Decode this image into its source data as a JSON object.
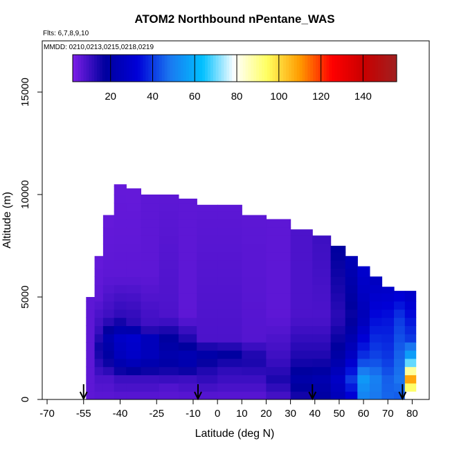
{
  "chart_data": {
    "type": "heatmap",
    "title": "ATOM2 Northbound nPentane_WAS",
    "flights_note": "Flts: 6,7,8,9,10",
    "dates_note": "MMDD: 0210,0213,0215,0218,0219",
    "xlabel": "Latitude (deg N)",
    "ylabel": "Altitude (m)",
    "xlim": [
      -72,
      87
    ],
    "ylim": [
      0,
      17500
    ],
    "x_ticks": [
      -70,
      -55,
      -40,
      -25,
      -10,
      0,
      10,
      20,
      30,
      40,
      50,
      60,
      70,
      80
    ],
    "y_ticks": [
      0,
      5000,
      10000,
      15000
    ],
    "colorbar": {
      "range": [
        2,
        156
      ],
      "ticks": [
        20,
        40,
        60,
        80,
        100,
        120,
        140
      ],
      "colors": [
        "#7d1fe8",
        "#00009e",
        "#0000d8",
        "#1a78f0",
        "#00c0ff",
        "#ffffff",
        "#ffff60",
        "#ff9c00",
        "#ff0000",
        "#c80000",
        "#a02020"
      ]
    },
    "arrows_at_latitude": [
      -55,
      -8,
      39,
      76
    ],
    "curtain": [
      {
        "lat": -52,
        "top": 5000,
        "values": [
          [
            0,
            6
          ],
          [
            1500,
            6
          ],
          [
            5000,
            6
          ]
        ]
      },
      {
        "lat": -49,
        "top": 7000,
        "values": [
          [
            0,
            6
          ],
          [
            1000,
            8
          ],
          [
            2500,
            16
          ],
          [
            3500,
            10
          ],
          [
            5000,
            6
          ],
          [
            7000,
            5
          ]
        ]
      },
      {
        "lat": -45,
        "top": 9000,
        "values": [
          [
            0,
            6
          ],
          [
            1000,
            8
          ],
          [
            2000,
            18
          ],
          [
            3000,
            22
          ],
          [
            4000,
            10
          ],
          [
            6000,
            6
          ],
          [
            9000,
            5
          ]
        ]
      },
      {
        "lat": -40,
        "top": 10500,
        "values": [
          [
            0,
            6
          ],
          [
            1000,
            10
          ],
          [
            2000,
            25
          ],
          [
            3000,
            28
          ],
          [
            4000,
            12
          ],
          [
            6000,
            6
          ],
          [
            10500,
            5
          ]
        ]
      },
      {
        "lat": -35,
        "top": 10300,
        "values": [
          [
            0,
            6
          ],
          [
            1000,
            10
          ],
          [
            2000,
            28
          ],
          [
            3000,
            30
          ],
          [
            3800,
            12
          ],
          [
            6000,
            6
          ],
          [
            10300,
            5
          ]
        ]
      },
      {
        "lat": -28,
        "top": 10000,
        "values": [
          [
            0,
            6
          ],
          [
            1000,
            10
          ],
          [
            2000,
            25
          ],
          [
            3000,
            25
          ],
          [
            3500,
            10
          ],
          [
            6000,
            6
          ],
          [
            10000,
            6
          ]
        ]
      },
      {
        "lat": -20,
        "top": 10000,
        "values": [
          [
            0,
            6
          ],
          [
            800,
            8
          ],
          [
            2000,
            22
          ],
          [
            3000,
            18
          ],
          [
            4000,
            8
          ],
          [
            10000,
            6
          ]
        ]
      },
      {
        "lat": -12,
        "top": 9800,
        "values": [
          [
            0,
            6
          ],
          [
            1000,
            10
          ],
          [
            2000,
            25
          ],
          [
            2800,
            15
          ],
          [
            4000,
            6
          ],
          [
            9800,
            6
          ]
        ]
      },
      {
        "lat": -5,
        "top": 9500,
        "values": [
          [
            0,
            6
          ],
          [
            1500,
            14
          ],
          [
            2200,
            20
          ],
          [
            3000,
            8
          ],
          [
            9500,
            6
          ]
        ]
      },
      {
        "lat": 5,
        "top": 9500,
        "values": [
          [
            0,
            6
          ],
          [
            1500,
            12
          ],
          [
            2200,
            18
          ],
          [
            3000,
            8
          ],
          [
            9500,
            6
          ]
        ]
      },
      {
        "lat": 15,
        "top": 9000,
        "values": [
          [
            0,
            6
          ],
          [
            1000,
            10
          ],
          [
            2000,
            15
          ],
          [
            3000,
            7
          ],
          [
            9000,
            6
          ]
        ]
      },
      {
        "lat": 25,
        "top": 8800,
        "values": [
          [
            0,
            8
          ],
          [
            1000,
            14
          ],
          [
            2000,
            10
          ],
          [
            4000,
            6
          ],
          [
            8800,
            6
          ]
        ]
      },
      {
        "lat": 35,
        "top": 8300,
        "values": [
          [
            0,
            14
          ],
          [
            1000,
            20
          ],
          [
            2000,
            14
          ],
          [
            4000,
            8
          ],
          [
            8300,
            8
          ]
        ]
      },
      {
        "lat": 43,
        "top": 8000,
        "values": [
          [
            0,
            18
          ],
          [
            1000,
            22
          ],
          [
            2000,
            14
          ],
          [
            4000,
            8
          ],
          [
            8000,
            10
          ]
        ]
      },
      {
        "lat": 50,
        "top": 7500,
        "values": [
          [
            0,
            24
          ],
          [
            1000,
            28
          ],
          [
            2000,
            20
          ],
          [
            4000,
            12
          ],
          [
            7500,
            18
          ]
        ]
      },
      {
        "lat": 55,
        "top": 7000,
        "values": [
          [
            0,
            30
          ],
          [
            1000,
            40
          ],
          [
            2000,
            28
          ],
          [
            4000,
            16
          ],
          [
            7000,
            24
          ]
        ]
      },
      {
        "lat": 60,
        "top": 6500,
        "values": [
          [
            0,
            50
          ],
          [
            1000,
            55
          ],
          [
            2000,
            40
          ],
          [
            4000,
            24
          ],
          [
            6500,
            30
          ]
        ]
      },
      {
        "lat": 65,
        "top": 6000,
        "values": [
          [
            0,
            48
          ],
          [
            1000,
            50
          ],
          [
            2000,
            42
          ],
          [
            4000,
            34
          ],
          [
            6000,
            26
          ]
        ]
      },
      {
        "lat": 70,
        "top": 5500,
        "values": [
          [
            0,
            46
          ],
          [
            1000,
            45
          ],
          [
            2000,
            40
          ],
          [
            4000,
            35
          ],
          [
            5500,
            28
          ]
        ]
      },
      {
        "lat": 75,
        "top": 5300,
        "values": [
          [
            0,
            44
          ],
          [
            1000,
            48
          ],
          [
            2000,
            46
          ],
          [
            4000,
            40
          ],
          [
            5300,
            30
          ]
        ]
      },
      {
        "lat": 79,
        "top": 5300,
        "values": [
          [
            0,
            72
          ],
          [
            1000,
            108
          ],
          [
            2000,
            60
          ],
          [
            3000,
            40
          ],
          [
            5300,
            28
          ]
        ]
      }
    ]
  }
}
